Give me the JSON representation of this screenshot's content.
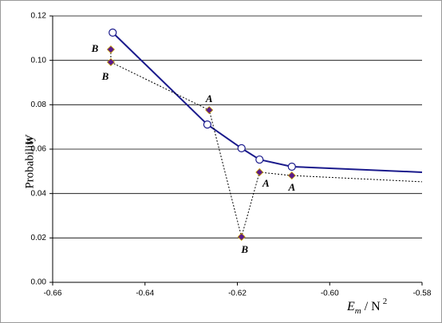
{
  "chart_data": {
    "type": "line",
    "xlim": [
      -0.66,
      -0.58
    ],
    "xticks": [
      -0.66,
      -0.64,
      -0.62,
      {
        "value": -0.6,
        "label": "-0.60"
      },
      -0.58
    ],
    "ylim": [
      0,
      0.12
    ],
    "yticks": [
      {
        "value": 0,
        "label": "0.00"
      },
      0.02,
      0.04,
      0.06,
      0.08,
      {
        "value": 0.1,
        "label": "0.10"
      },
      0.12
    ],
    "grid": true,
    "y_label": "Probability",
    "y_label_symbol": "W",
    "x_label": {
      "symbol": "E",
      "subscript": "m",
      "rest": "/ N",
      "superscript": "2"
    },
    "series": [
      {
        "color": "#1a1a8c",
        "style": "solid",
        "marker": "circle",
        "x": [
          -0.647,
          -0.6265,
          -0.6191,
          -0.6152,
          -0.6082,
          -0.58
        ],
        "values": [
          0.1125,
          0.0711,
          0.0604,
          0.0553,
          0.0521,
          0.0496
        ]
      },
      {
        "color": "#5a1a8c",
        "style": "dotted",
        "marker": "diamond",
        "x": [
          -0.6474,
          -0.6474,
          -0.6261,
          -0.6191,
          -0.6152,
          -0.6082,
          -0.58
        ],
        "values": [
          0.1049,
          0.0992,
          0.0776,
          0.0205,
          0.0496,
          0.0481,
          0.0453
        ],
        "labels": [
          "B",
          "B",
          "A",
          "B",
          "A",
          "A",
          null
        ]
      }
    ]
  }
}
